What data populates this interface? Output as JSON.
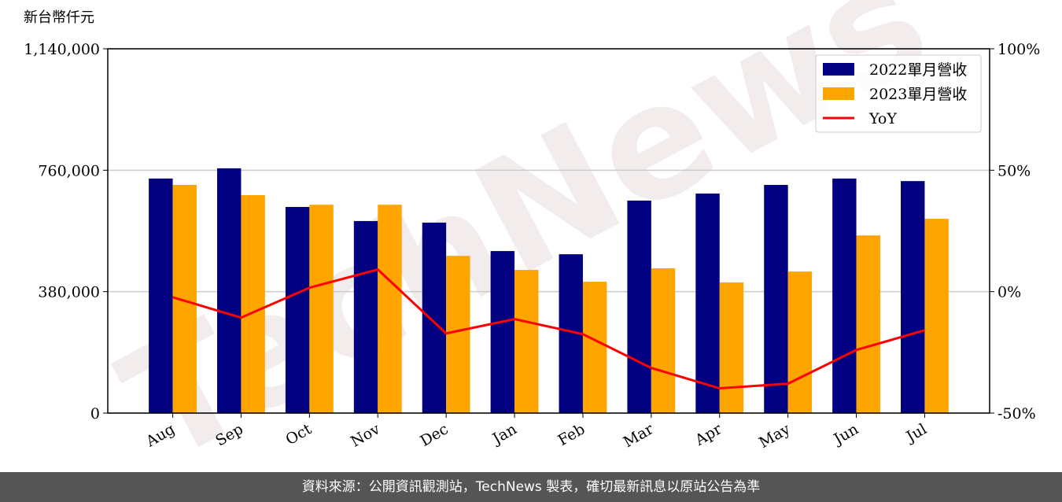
{
  "chart_data": {
    "type": "bar-line",
    "y_label": "新台幣仟元",
    "watermark": "TechNews",
    "categories": [
      "Aug",
      "Sep",
      "Oct",
      "Nov",
      "Dec",
      "Jan",
      "Feb",
      "Mar",
      "Apr",
      "May",
      "Jun",
      "Jul"
    ],
    "series": [
      {
        "name": "2022單月營收",
        "color": "#000080",
        "kind": "bar",
        "values": [
          734000,
          766000,
          645000,
          601000,
          596000,
          507000,
          497000,
          665000,
          687000,
          714000,
          734000,
          726000
        ]
      },
      {
        "name": "2023單月營收",
        "color": "#ffa500",
        "kind": "bar",
        "values": [
          714000,
          682000,
          652000,
          652000,
          492000,
          448000,
          411000,
          453000,
          409000,
          443000,
          556000,
          608000
        ]
      },
      {
        "name": "YoY",
        "color": "#ff0000",
        "kind": "line",
        "axis": "y2",
        "values": [
          -2.3,
          -10.7,
          1.6,
          9.1,
          -17.2,
          -11.3,
          -17.5,
          -31.4,
          -39.8,
          -37.9,
          -24.0,
          -15.9
        ]
      }
    ],
    "ylim": [
      0,
      1140000
    ],
    "yticks": [
      0,
      {
        "value": 380000,
        "label": "380,000"
      },
      {
        "value": 760000,
        "label": "760,000"
      },
      {
        "value": 1140000,
        "label": "1,140,000"
      }
    ],
    "y2lim": [
      -50,
      100
    ],
    "y2ticks": [
      {
        "value": -50,
        "label": "-50%"
      },
      {
        "value": 0,
        "label": "0%"
      },
      {
        "value": 50,
        "label": "50%"
      },
      {
        "value": 100,
        "label": "100%"
      }
    ],
    "grid": true,
    "legend": "upper right",
    "footer": "資料來源：公開資訊觀測站，TechNews 製表，確切最新訊息以原站公告為準"
  }
}
